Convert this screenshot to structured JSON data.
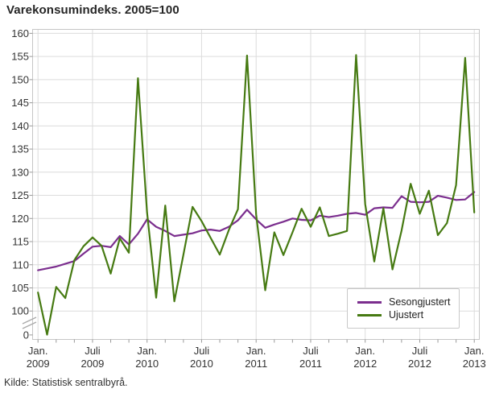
{
  "title": "Varekonsumindeks. 2005=100",
  "source": "Kilde: Statistisk sentralbyrå.",
  "colors": {
    "seasonally_adjusted": "#7b2e8e",
    "unadjusted": "#467a12",
    "gridline": "#dcdcdc",
    "plot_border": "#c6c6c6",
    "tick": "#999999",
    "axis_text": "#333333"
  },
  "legend": {
    "items": [
      {
        "label": "Sesongjustert",
        "color": "#7b2e8e"
      },
      {
        "label": "Ujustert",
        "color": "#467a12"
      }
    ]
  },
  "axes": {
    "y_ticks": [
      160,
      155,
      150,
      145,
      140,
      135,
      130,
      125,
      120,
      115,
      110,
      105,
      100
    ],
    "y_break_tick": 0,
    "y_axis_break": true,
    "x_ticks": [
      {
        "l1": "Jan.",
        "l2": "2009"
      },
      {
        "l1": "Juli",
        "l2": "2009"
      },
      {
        "l1": "Jan.",
        "l2": "2010"
      },
      {
        "l1": "Juli",
        "l2": "2010"
      },
      {
        "l1": "Jan.",
        "l2": "2011"
      },
      {
        "l1": "Juli",
        "l2": "2011"
      },
      {
        "l1": "Jan.",
        "l2": "2012"
      },
      {
        "l1": "Juli",
        "l2": "2012"
      },
      {
        "l1": "Jan.",
        "l2": "2013"
      }
    ]
  },
  "chart_data": {
    "type": "line",
    "title": "Varekonsumindeks. 2005=100",
    "xlabel": "",
    "ylabel": "",
    "grid": true,
    "legend_position": "inside-bottom-right",
    "ylim_main": [
      100,
      160
    ],
    "y_break_to_zero": true,
    "x": [
      "2009-01",
      "2009-02",
      "2009-03",
      "2009-04",
      "2009-05",
      "2009-06",
      "2009-07",
      "2009-08",
      "2009-09",
      "2009-10",
      "2009-11",
      "2009-12",
      "2010-01",
      "2010-02",
      "2010-03",
      "2010-04",
      "2010-05",
      "2010-06",
      "2010-07",
      "2010-08",
      "2010-09",
      "2010-10",
      "2010-11",
      "2010-12",
      "2011-01",
      "2011-02",
      "2011-03",
      "2011-04",
      "2011-05",
      "2011-06",
      "2011-07",
      "2011-08",
      "2011-09",
      "2011-10",
      "2011-11",
      "2011-12",
      "2012-01",
      "2012-02",
      "2012-03",
      "2012-04",
      "2012-05",
      "2012-06",
      "2012-07",
      "2012-08",
      "2012-09",
      "2012-10",
      "2012-11",
      "2012-12",
      "2013-01"
    ],
    "series": [
      {
        "name": "Sesongjustert",
        "color": "#7b2e8e",
        "values": [
          108.8,
          109.2,
          109.6,
          110.2,
          110.8,
          112.4,
          113.9,
          114.1,
          113.8,
          116.2,
          114.4,
          116.7,
          119.8,
          118.2,
          117.3,
          116.2,
          116.5,
          116.8,
          117.4,
          117.6,
          117.3,
          118.2,
          119.6,
          121.9,
          119.8,
          118.0,
          118.7,
          119.3,
          120.0,
          119.7,
          119.6,
          120.6,
          120.3,
          120.6,
          121.0,
          121.2,
          120.8,
          122.2,
          122.4,
          122.3,
          124.8,
          123.6,
          123.5,
          123.6,
          124.9,
          124.5,
          124.0,
          124.1,
          125.7
        ]
      },
      {
        "name": "Ujustert",
        "color": "#467a12",
        "values": [
          104.0,
          1.5,
          105.2,
          102.8,
          111.0,
          114.0,
          115.9,
          114.1,
          108.1,
          115.7,
          112.6,
          150.3,
          121.3,
          102.9,
          122.8,
          102.1,
          112.2,
          122.5,
          119.4,
          115.8,
          112.2,
          117.5,
          122.0,
          155.2,
          120.9,
          104.5,
          117.0,
          112.1,
          117.0,
          122.1,
          118.2,
          122.4,
          116.2,
          116.7,
          117.3,
          155.3,
          123.1,
          110.7,
          122.2,
          109.0,
          117.4,
          127.5,
          121.0,
          126.0,
          116.4,
          119.0,
          127.2,
          154.7,
          121.3
        ]
      }
    ]
  }
}
